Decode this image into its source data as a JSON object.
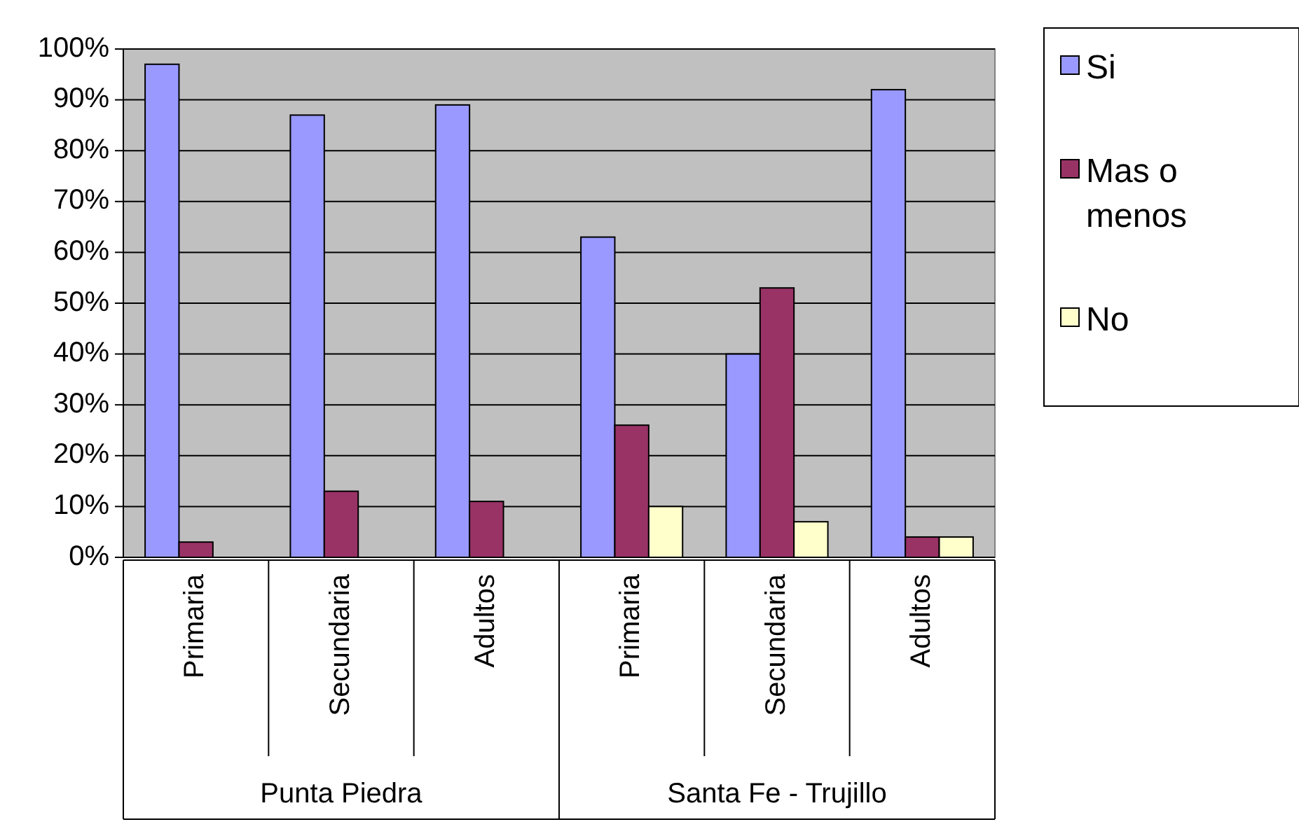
{
  "chart_data": {
    "type": "bar",
    "categories": [
      "Primaria",
      "Secundaria",
      "Adultos",
      "Primaria",
      "Secundaria",
      "Adultos"
    ],
    "series": [
      {
        "name": "Si",
        "color": "#9999ff",
        "values": [
          97,
          87,
          89,
          63,
          40,
          92
        ]
      },
      {
        "name": "Mas o menos",
        "color": "#993366",
        "values": [
          3,
          13,
          11,
          26,
          53,
          4
        ]
      },
      {
        "name": "No",
        "color": "#ffffcc",
        "values": [
          0,
          0,
          0,
          10,
          7,
          4
        ]
      }
    ],
    "ylim": [
      0,
      100
    ],
    "yticks": [
      {
        "value": 0,
        "label": "0%"
      },
      {
        "value": 10,
        "label": "10%"
      },
      {
        "value": 20,
        "label": "20%"
      },
      {
        "value": 30,
        "label": "30%"
      },
      {
        "value": 40,
        "label": "40%"
      },
      {
        "value": 50,
        "label": "50%"
      },
      {
        "value": 60,
        "label": "60%"
      },
      {
        "value": 70,
        "label": "70%"
      },
      {
        "value": 80,
        "label": "80%"
      },
      {
        "value": 90,
        "label": "90%"
      },
      {
        "value": 100,
        "label": "100%"
      }
    ],
    "annotations": [
      "Punta Piedra",
      "Santa Fe - Trujillo"
    ],
    "grid": "y",
    "legend": "right"
  }
}
